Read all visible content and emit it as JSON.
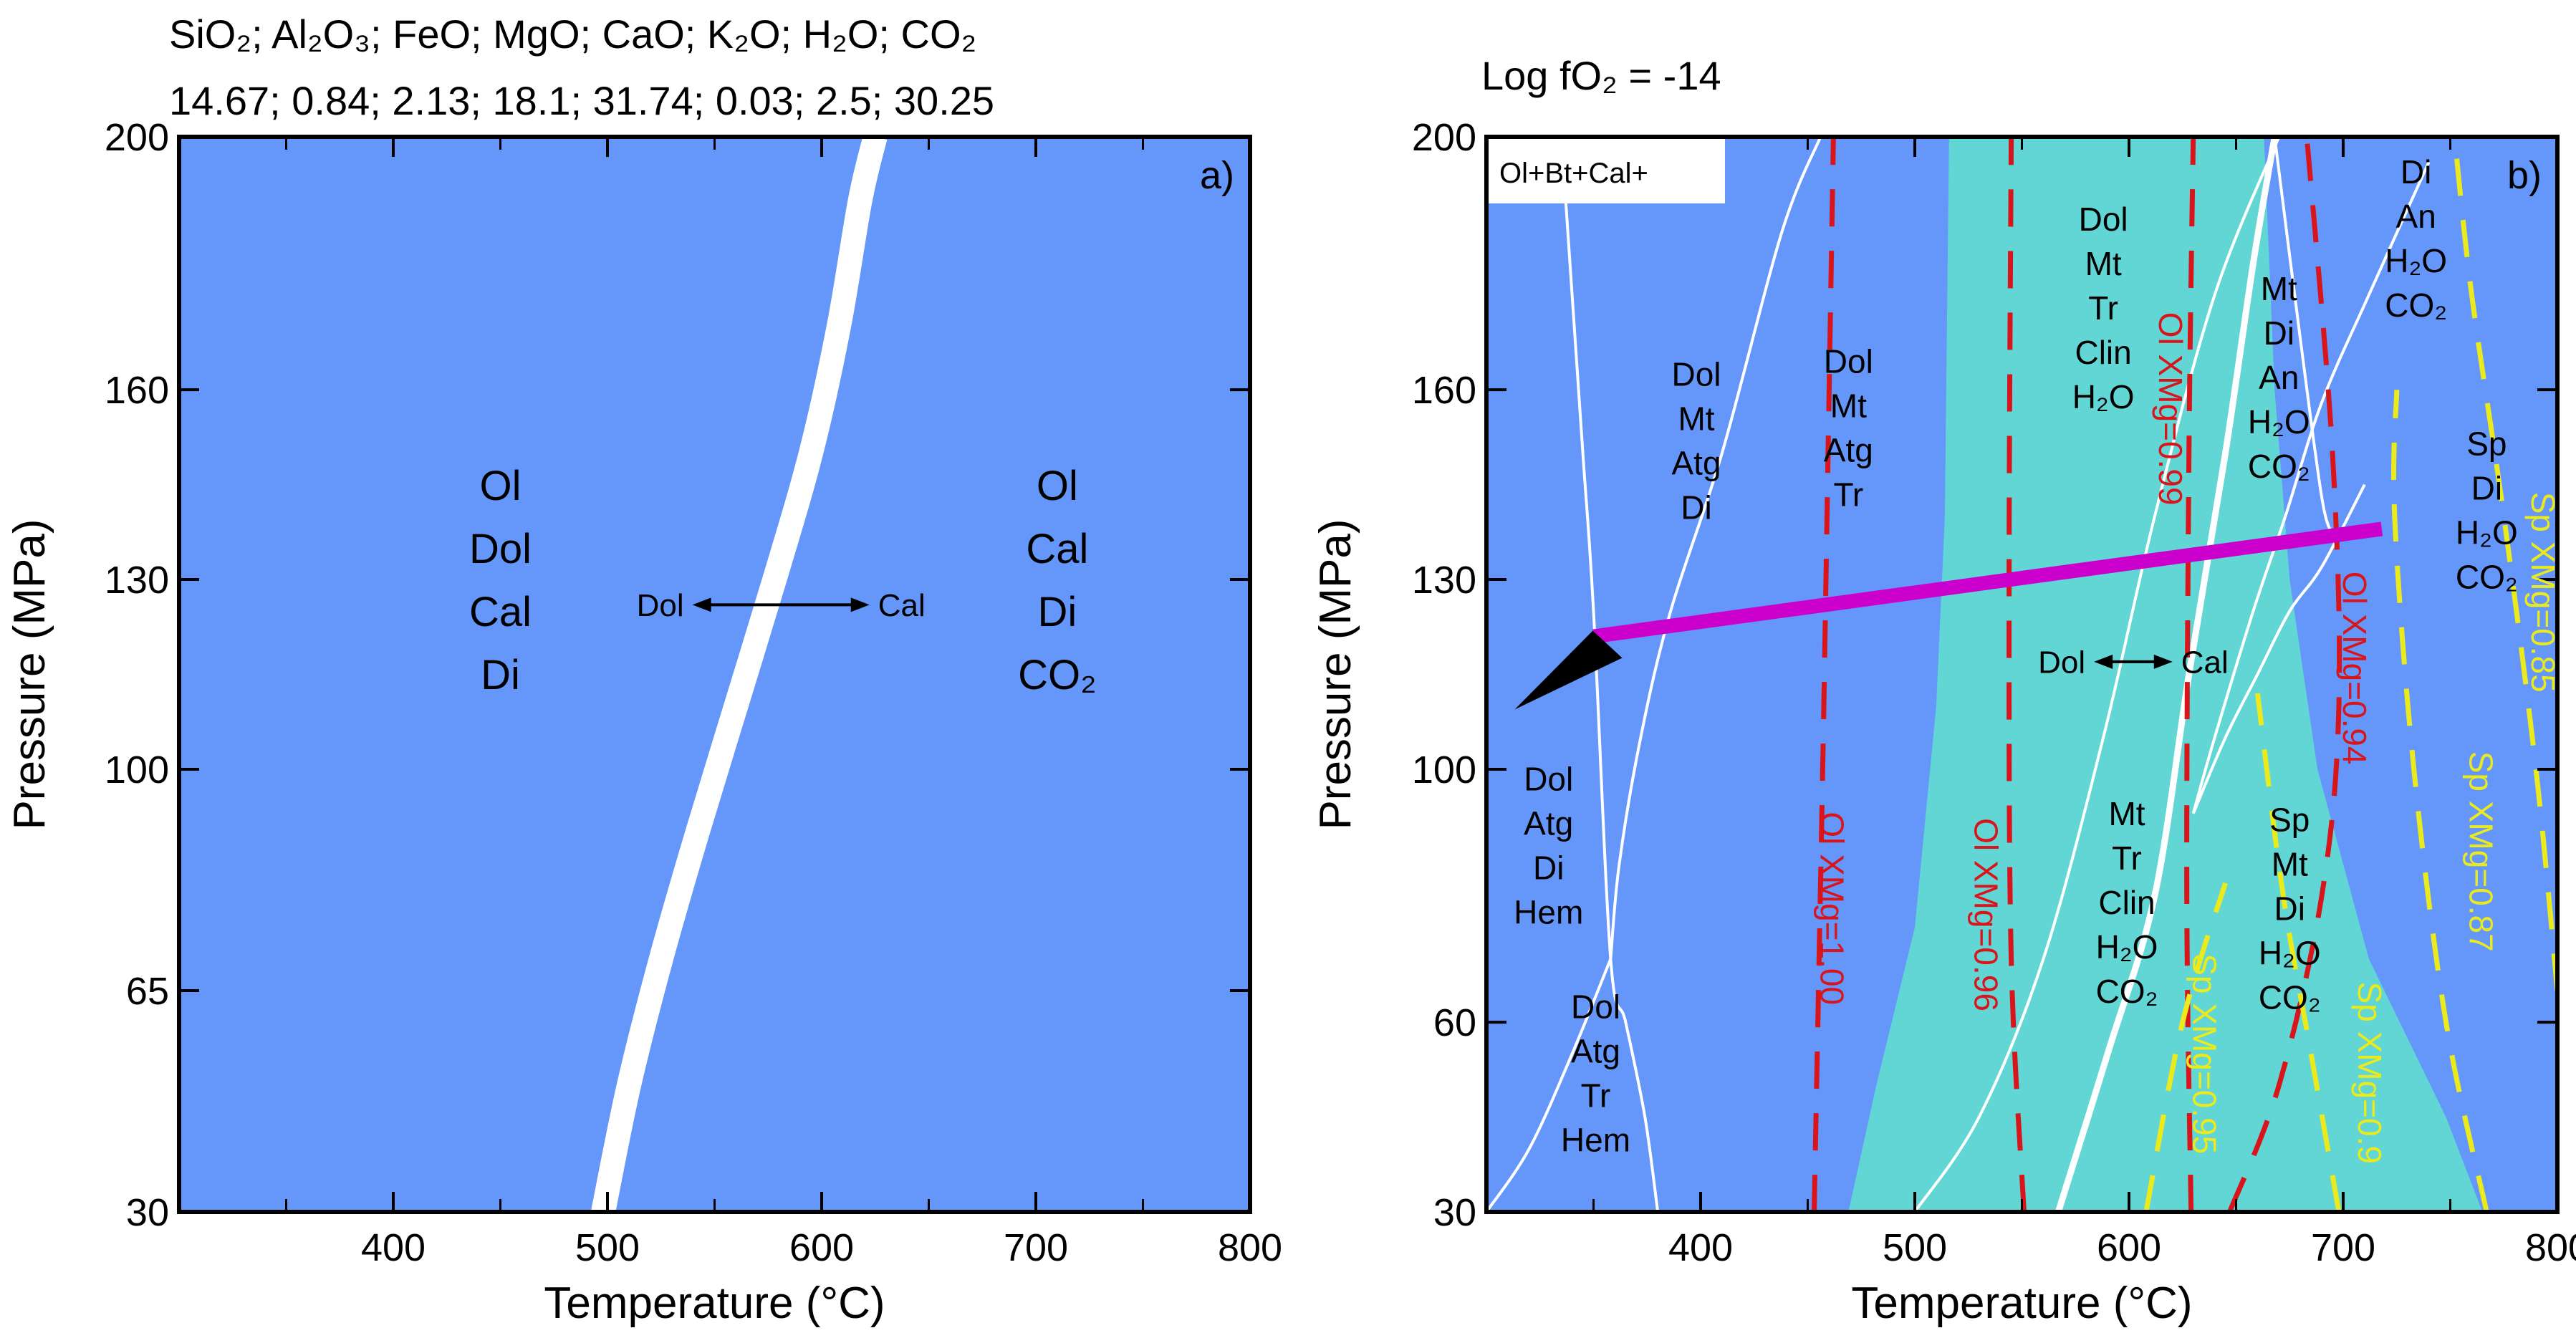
{
  "header": {
    "oxides": "SiO₂; Al₂O₃; FeO; MgO; CaO; K₂O; H₂O; CO₂",
    "composition": "14.67; 0.84; 2.13; 18.1; 31.74; 0.03; 2.5; 30.25",
    "fo2": "Log fO₂ = -14"
  },
  "colors": {
    "blue": "#6497f9",
    "teal": "#62d5d5",
    "red": "#d9151c",
    "yellow": "#eaea1c",
    "magenta": "#cc00cc"
  },
  "chart_data": [
    {
      "type": "phase-diagram",
      "panel": "a)",
      "xlabel": "Temperature (°C)",
      "ylabel": "Pressure (MPa)",
      "xlim": [
        300,
        800
      ],
      "ylim": [
        30,
        200
      ],
      "xticks": [
        400,
        500,
        600,
        700,
        800
      ],
      "yticks": [
        30,
        65,
        100,
        130,
        160,
        200
      ],
      "fields": [
        {
          "id": "left",
          "label": [
            "Ol",
            "Dol",
            "Cal",
            "Di"
          ],
          "pos": [
            450,
            130
          ]
        },
        {
          "id": "right",
          "label": [
            "Ol",
            "Cal",
            "Di",
            "CO₂"
          ],
          "pos": [
            710,
            130
          ]
        }
      ],
      "reaction": {
        "left": "Dol",
        "right": "Cal",
        "pos_left": [
          537,
          126
        ],
        "pos_right": [
          625,
          126
        ],
        "y": 126
      },
      "boundary": {
        "x": [
          498,
          510,
          525,
          542,
          560,
          578,
          595,
          608,
          618,
          625
        ],
        "y": [
          30,
          50,
          70,
          90,
          110,
          130,
          150,
          170,
          190,
          200
        ]
      }
    },
    {
      "type": "phase-diagram",
      "panel": "b)",
      "xlabel": "Temperature (°C)",
      "ylabel": "Pressure (MPa)",
      "xlim": [
        300,
        800
      ],
      "ylim": [
        30,
        200
      ],
      "xticks": [
        400,
        500,
        600,
        700,
        800
      ],
      "yticks": [
        30,
        60,
        100,
        130,
        160,
        200
      ],
      "legend_box": "Ol+Bt+Cal+",
      "teal_region": [
        [
          469,
          30
        ],
        [
          482,
          50
        ],
        [
          500,
          75
        ],
        [
          510,
          110
        ],
        [
          514,
          140
        ],
        [
          516,
          200
        ],
        [
          663,
          200
        ],
        [
          668,
          160
        ],
        [
          675,
          130
        ],
        [
          688,
          100
        ],
        [
          712,
          70
        ],
        [
          748,
          45
        ],
        [
          765,
          30
        ]
      ],
      "fields": [
        {
          "label": [
            "Dol",
            "Mt",
            "Atg",
            "Di"
          ],
          "pos": [
            398,
            152
          ]
        },
        {
          "label": [
            "Dol",
            "Mt",
            "Atg",
            "Tr"
          ],
          "pos": [
            469,
            154
          ]
        },
        {
          "label": [
            "Dol",
            "Mt",
            "Tr",
            "Clin",
            "H₂O"
          ],
          "pos": [
            588,
            173
          ]
        },
        {
          "label": [
            "Mt",
            "Di",
            "An",
            "H₂O",
            "CO₂"
          ],
          "pos": [
            670,
            162
          ]
        },
        {
          "label": [
            "Di",
            "An",
            "H₂O",
            "CO₂"
          ],
          "pos": [
            734,
            184
          ]
        },
        {
          "label": [
            "Sp",
            "Di",
            "H₂O",
            "CO₂"
          ],
          "pos": [
            767,
            141
          ]
        },
        {
          "label": [
            "Dol",
            "Atg",
            "Di",
            "Hem"
          ],
          "pos": [
            329,
            88
          ]
        },
        {
          "label": [
            "Dol",
            "Atg",
            "Tr",
            "Hem"
          ],
          "pos": [
            351,
            52
          ]
        },
        {
          "label": [
            "Mt",
            "Tr",
            "Clin",
            "H₂O",
            "CO₂"
          ],
          "pos": [
            599,
            79
          ]
        },
        {
          "label": [
            "Sp",
            "Mt",
            "Di",
            "H₂O",
            "CO₂"
          ],
          "pos": [
            675,
            78
          ]
        }
      ],
      "reaction": {
        "left": "Dol",
        "right": "Cal",
        "pos_left": [
          581,
          117
        ],
        "pos_right": [
          623,
          117
        ],
        "y": 117
      },
      "white_lines": [
        {
          "x": [
            335,
            340,
            345,
            350,
            358,
            365,
            374,
            380
          ],
          "y": [
            200,
            175,
            150,
            125,
            70,
            60,
            45,
            30
          ]
        },
        {
          "x": [
            358,
            362,
            372,
            386,
            410,
            438,
            456
          ],
          "y": [
            70,
            85,
            105,
            125,
            150,
            185,
            200
          ]
        },
        {
          "x": [
            300,
            320,
            340,
            358
          ],
          "y": [
            30,
            40,
            55,
            70
          ]
        },
        {
          "x": [
            500,
            530,
            560,
            588,
            612,
            640,
            670
          ],
          "y": [
            30,
            45,
            70,
            105,
            140,
            175,
            200
          ]
        },
        {
          "x": [
            567,
            590,
            612,
            628,
            645,
            658,
            668
          ],
          "y": [
            30,
            55,
            80,
            115,
            150,
            180,
            200
          ]
        },
        {
          "x": [
            630,
            640,
            658,
            673,
            690,
            712,
            740
          ],
          "y": [
            93,
            105,
            125,
            140,
            158,
            175,
            196
          ]
        },
        {
          "x": [
            668,
            680,
            690,
            695
          ],
          "y": [
            200,
            168,
            143,
            137
          ]
        },
        {
          "x": [
            630,
            645,
            660,
            675,
            690,
            710
          ],
          "y": [
            93,
            105,
            115,
            125,
            132,
            145
          ]
        }
      ],
      "isopleths": [
        {
          "label": "Ol XMg=1.00",
          "color": "red",
          "x": [
            453,
            457,
            460,
            462
          ],
          "y": [
            30,
            100,
            160,
            200
          ],
          "label_pos": [
            456,
            78
          ]
        },
        {
          "label": "Ol XMg=0.96",
          "color": "red",
          "x": [
            551,
            545,
            544,
            545
          ],
          "y": [
            30,
            70,
            130,
            200
          ],
          "label_pos": [
            528,
            77
          ]
        },
        {
          "label": "Ol XMg=0.99",
          "color": "red",
          "x": [
            629,
            627,
            628,
            630
          ],
          "y": [
            30,
            80,
            150,
            200
          ],
          "label_pos": [
            614,
            157
          ]
        },
        {
          "label": "Ol XMg=0.94",
          "color": "red",
          "x": [
            647,
            670,
            690,
            698,
            695,
            683
          ],
          "y": [
            30,
            50,
            80,
            110,
            150,
            200
          ],
          "label_pos": [
            700,
            116
          ]
        },
        {
          "label": "Sp XMg=0.95",
          "color": "yellow",
          "x": [
            608,
            625,
            645
          ],
          "y": [
            30,
            60,
            82
          ],
          "label_pos": [
            630,
            55
          ]
        },
        {
          "label": "Sp XMg=0.9",
          "color": "yellow",
          "x": [
            698,
            685,
            672,
            660
          ],
          "y": [
            30,
            55,
            80,
            112
          ],
          "label_pos": [
            707,
            52
          ]
        },
        {
          "label": "Sp XMg=0.87",
          "color": "yellow",
          "x": [
            767,
            748,
            733,
            724,
            725
          ],
          "y": [
            30,
            60,
            100,
            140,
            160
          ],
          "label_pos": [
            759,
            87
          ]
        },
        {
          "label": "Sp XMg=0.85",
          "color": "yellow",
          "x": [
            800,
            790,
            775,
            760,
            752
          ],
          "y": [
            65,
            100,
            140,
            175,
            200
          ],
          "label_pos": [
            788,
            128
          ]
        }
      ],
      "path_arrow": {
        "from": [
          718,
          138
        ],
        "to": [
          350,
          121
        ],
        "color": "magenta"
      }
    }
  ]
}
